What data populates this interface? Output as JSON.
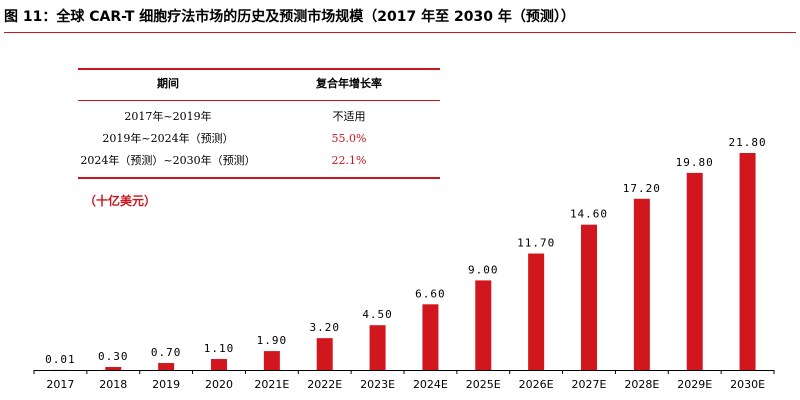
{
  "figure_title": "图 11：全球 CAR-T 细胞疗法市场的历史及预测市场规模（2017 年至 2030 年（预测））",
  "table": {
    "header": [
      "期间",
      "复合年增长率"
    ],
    "rows": [
      {
        "period": "2017年~2019年",
        "rate": "不适用"
      },
      {
        "period": "2019年~2024年（预测）",
        "rate": "55.0%"
      },
      {
        "period": "2024年（预测）~2030年（预测）",
        "rate": "22.1%"
      }
    ]
  },
  "unit_label": "（十亿美元）",
  "colors": {
    "bar": "#d2161e",
    "accent": "#c8161e",
    "axis": "#000000"
  },
  "chart_data": {
    "type": "bar",
    "categories": [
      "2017",
      "2018",
      "2019",
      "2020",
      "2021E",
      "2022E",
      "2023E",
      "2024E",
      "2025E",
      "2026E",
      "2027E",
      "2028E",
      "2029E",
      "2030E"
    ],
    "values": [
      0.01,
      0.3,
      0.7,
      1.1,
      1.9,
      3.2,
      4.5,
      6.6,
      9.0,
      11.7,
      14.6,
      17.2,
      19.8,
      21.8
    ],
    "value_labels": [
      "0.01",
      "0.30",
      "0.70",
      "1.10",
      "1.90",
      "3.20",
      "4.50",
      "6.60",
      "9.00",
      "11.70",
      "14.60",
      "17.20",
      "19.80",
      "21.80"
    ],
    "ylim": [
      0,
      21.8
    ]
  }
}
